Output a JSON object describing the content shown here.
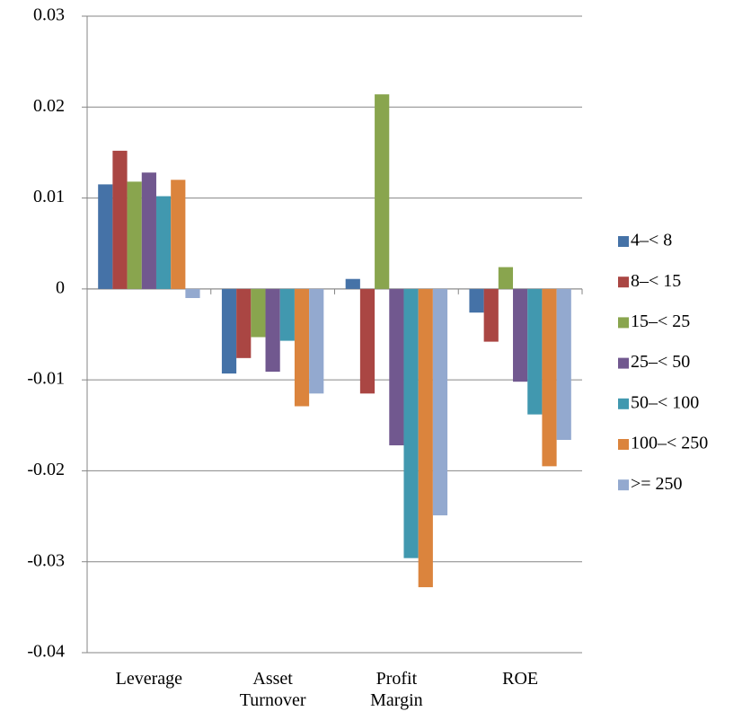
{
  "chart_data": {
    "type": "bar",
    "categories": [
      "Leverage",
      "Asset Turnover",
      "Profit Margin",
      "ROE"
    ],
    "series": [
      {
        "name": "4–< 8",
        "color": "#4572a7",
        "values": [
          0.0115,
          -0.0093,
          0.0011,
          -0.0026
        ]
      },
      {
        "name": "8–< 15",
        "color": "#aa4643",
        "values": [
          0.0152,
          -0.0076,
          -0.0115,
          -0.0058
        ]
      },
      {
        "name": "15–< 25",
        "color": "#89a54e",
        "values": [
          0.0118,
          -0.0053,
          0.0214,
          0.0024
        ]
      },
      {
        "name": "25–< 50",
        "color": "#71588f",
        "values": [
          0.0128,
          -0.0091,
          -0.0172,
          -0.0102
        ]
      },
      {
        "name": "50–< 100",
        "color": "#4198af",
        "values": [
          0.0102,
          -0.0057,
          -0.0296,
          -0.0138
        ]
      },
      {
        "name": "100–< 250",
        "color": "#db843d",
        "values": [
          0.012,
          -0.0129,
          -0.0328,
          -0.0195
        ]
      },
      {
        "name": ">= 250",
        "color": "#93a9cf",
        "values": [
          -0.001,
          -0.0115,
          -0.0249,
          -0.0166
        ]
      }
    ],
    "ylim": [
      -0.04,
      0.03
    ],
    "yticks": [
      -0.04,
      -0.03,
      -0.02,
      -0.01,
      0,
      0.01,
      0.02,
      0.03
    ],
    "grid": true,
    "legend": "right"
  }
}
